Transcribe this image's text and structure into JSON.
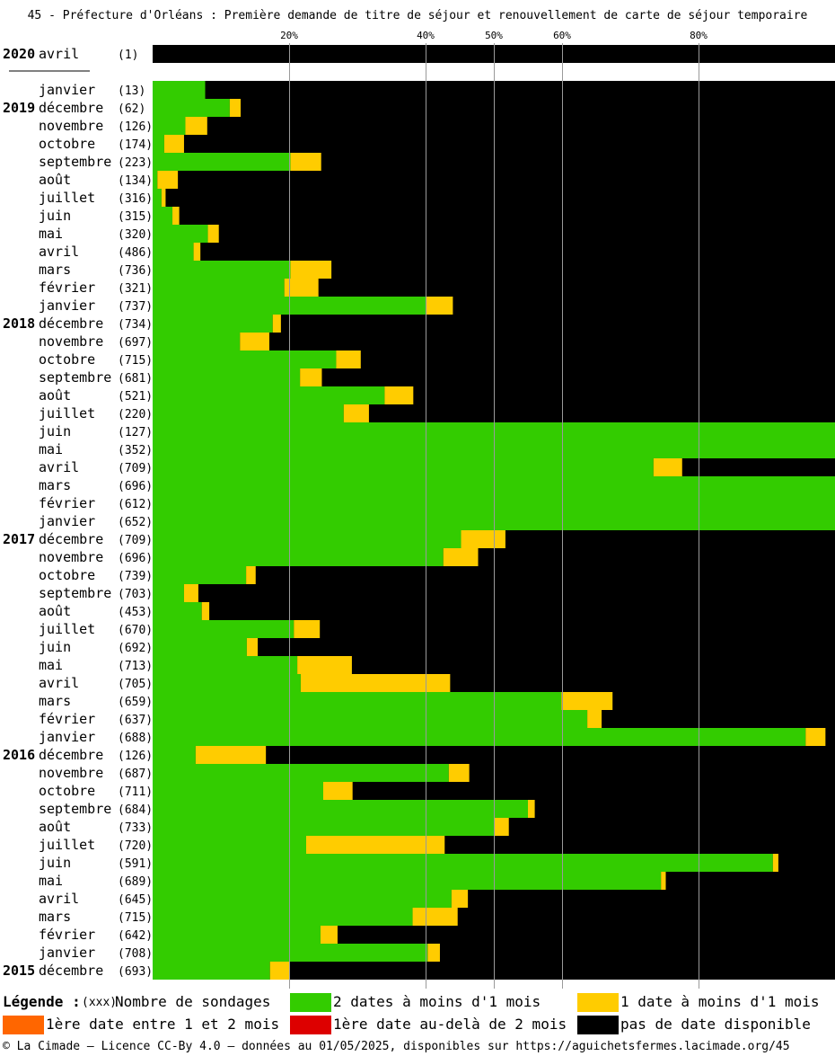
{
  "title": "45 - Préfecture d'Orléans : Première demande de titre de séjour et renouvellement de carte de séjour temporaire",
  "colors": {
    "green": "#33cc00",
    "yellow": "#ffcc00",
    "orange": "#ff6600",
    "red": "#dd0000",
    "black": "#000000"
  },
  "chart_data": {
    "type": "bar",
    "orientation": "horizontal",
    "stacked": true,
    "xlim": [
      0,
      100
    ],
    "x_ticks": [
      "20%",
      "40%",
      "50%",
      "60%",
      "80%"
    ],
    "x_tick_values": [
      20,
      40,
      50,
      60,
      80
    ],
    "grid": "vertical lines at tick values",
    "legend_position": "bottom",
    "series": [
      {
        "name": "2 dates à moins d'1 mois",
        "color": "#33cc00"
      },
      {
        "name": "1 date à moins d'1 mois",
        "color": "#ffcc00"
      },
      {
        "name": "1ère date entre 1 et 2 mois",
        "color": "#ff6600"
      },
      {
        "name": "1ère date au-delà de 2 mois",
        "color": "#dd0000"
      },
      {
        "name": "pas de date disponible",
        "color": "#000000"
      }
    ],
    "rows": [
      {
        "year": "2020",
        "month": "avril",
        "count": "(1)",
        "green": 0,
        "yellow": 0
      },
      {
        "year": "",
        "month": "janvier",
        "count": "(13)",
        "green": 7.7,
        "yellow": 0
      },
      {
        "year": "2019",
        "month": "décembre",
        "count": "(62)",
        "green": 11.3,
        "yellow": 1.6
      },
      {
        "year": "",
        "month": "novembre",
        "count": "(126)",
        "green": 4.8,
        "yellow": 3.2
      },
      {
        "year": "",
        "month": "octobre",
        "count": "(174)",
        "green": 1.7,
        "yellow": 2.9
      },
      {
        "year": "",
        "month": "septembre",
        "count": "(223)",
        "green": 20.2,
        "yellow": 4.5
      },
      {
        "year": "",
        "month": "août",
        "count": "(134)",
        "green": 0.7,
        "yellow": 3.0
      },
      {
        "year": "",
        "month": "juillet",
        "count": "(316)",
        "green": 1.3,
        "yellow": 0.6
      },
      {
        "year": "",
        "month": "juin",
        "count": "(315)",
        "green": 2.9,
        "yellow": 1.0
      },
      {
        "year": "",
        "month": "mai",
        "count": "(320)",
        "green": 8.1,
        "yellow": 1.6
      },
      {
        "year": "",
        "month": "avril",
        "count": "(486)",
        "green": 6.0,
        "yellow": 1.0
      },
      {
        "year": "",
        "month": "mars",
        "count": "(736)",
        "green": 20.2,
        "yellow": 6.0
      },
      {
        "year": "",
        "month": "février",
        "count": "(321)",
        "green": 19.3,
        "yellow": 5.0
      },
      {
        "year": "",
        "month": "janvier",
        "count": "(737)",
        "green": 40.0,
        "yellow": 4.0
      },
      {
        "year": "2018",
        "month": "décembre",
        "count": "(734)",
        "green": 17.6,
        "yellow": 1.2
      },
      {
        "year": "",
        "month": "novembre",
        "count": "(697)",
        "green": 12.8,
        "yellow": 4.3
      },
      {
        "year": "",
        "month": "octobre",
        "count": "(715)",
        "green": 26.9,
        "yellow": 3.6
      },
      {
        "year": "",
        "month": "septembre",
        "count": "(681)",
        "green": 21.6,
        "yellow": 3.2
      },
      {
        "year": "",
        "month": "août",
        "count": "(521)",
        "green": 34.0,
        "yellow": 4.2
      },
      {
        "year": "",
        "month": "juillet",
        "count": "(220)",
        "green": 28.0,
        "yellow": 3.7
      },
      {
        "year": "",
        "month": "juin",
        "count": "(127)",
        "green": 100,
        "yellow": 0
      },
      {
        "year": "",
        "month": "mai",
        "count": "(352)",
        "green": 100,
        "yellow": 0
      },
      {
        "year": "",
        "month": "avril",
        "count": "(709)",
        "green": 73.4,
        "yellow": 4.2
      },
      {
        "year": "",
        "month": "mars",
        "count": "(696)",
        "green": 100,
        "yellow": 0
      },
      {
        "year": "",
        "month": "février",
        "count": "(612)",
        "green": 100,
        "yellow": 0
      },
      {
        "year": "",
        "month": "janvier",
        "count": "(652)",
        "green": 100,
        "yellow": 0
      },
      {
        "year": "2017",
        "month": "décembre",
        "count": "(709)",
        "green": 45.2,
        "yellow": 6.5
      },
      {
        "year": "",
        "month": "novembre",
        "count": "(696)",
        "green": 42.6,
        "yellow": 5.1
      },
      {
        "year": "",
        "month": "octobre",
        "count": "(739)",
        "green": 13.7,
        "yellow": 1.4
      },
      {
        "year": "",
        "month": "septembre",
        "count": "(703)",
        "green": 4.6,
        "yellow": 2.1
      },
      {
        "year": "",
        "month": "août",
        "count": "(453)",
        "green": 7.2,
        "yellow": 1.1
      },
      {
        "year": "",
        "month": "juillet",
        "count": "(670)",
        "green": 20.7,
        "yellow": 3.8
      },
      {
        "year": "",
        "month": "juin",
        "count": "(692)",
        "green": 13.8,
        "yellow": 1.6
      },
      {
        "year": "",
        "month": "mai",
        "count": "(713)",
        "green": 21.2,
        "yellow": 8.0
      },
      {
        "year": "",
        "month": "avril",
        "count": "(705)",
        "green": 21.7,
        "yellow": 21.9
      },
      {
        "year": "",
        "month": "mars",
        "count": "(659)",
        "green": 59.9,
        "yellow": 7.5
      },
      {
        "year": "",
        "month": "février",
        "count": "(637)",
        "green": 63.7,
        "yellow": 2.1
      },
      {
        "year": "",
        "month": "janvier",
        "count": "(688)",
        "green": 95.7,
        "yellow": 2.9
      },
      {
        "year": "2016",
        "month": "décembre",
        "count": "(126)",
        "green": 6.3,
        "yellow": 10.3
      },
      {
        "year": "",
        "month": "novembre",
        "count": "(687)",
        "green": 43.4,
        "yellow": 3.0
      },
      {
        "year": "",
        "month": "octobre",
        "count": "(711)",
        "green": 25.0,
        "yellow": 4.3
      },
      {
        "year": "",
        "month": "septembre",
        "count": "(684)",
        "green": 55.0,
        "yellow": 1.0
      },
      {
        "year": "",
        "month": "août",
        "count": "(733)",
        "green": 50.1,
        "yellow": 2.1
      },
      {
        "year": "",
        "month": "juillet",
        "count": "(720)",
        "green": 22.5,
        "yellow": 20.3
      },
      {
        "year": "",
        "month": "juin",
        "count": "(591)",
        "green": 90.9,
        "yellow": 0.8
      },
      {
        "year": "",
        "month": "mai",
        "count": "(689)",
        "green": 74.5,
        "yellow": 0.7
      },
      {
        "year": "",
        "month": "avril",
        "count": "(645)",
        "green": 43.8,
        "yellow": 2.4
      },
      {
        "year": "",
        "month": "mars",
        "count": "(715)",
        "green": 38.1,
        "yellow": 6.6
      },
      {
        "year": "",
        "month": "février",
        "count": "(642)",
        "green": 24.6,
        "yellow": 2.5
      },
      {
        "year": "",
        "month": "janvier",
        "count": "(708)",
        "green": 40.3,
        "yellow": 1.8
      },
      {
        "year": "2015",
        "month": "décembre",
        "count": "(693)",
        "green": 17.2,
        "yellow": 2.8
      }
    ]
  },
  "legend": {
    "title": "Légende :",
    "xxx": "(xxx)",
    "count_label": "Nombre de sondages",
    "green_label": "2 dates à moins d'1 mois",
    "yellow_label": "1 date à moins d'1 mois",
    "orange_label": "1ère date entre 1 et 2 mois",
    "red_label": "1ère date au-delà de 2 mois",
    "black_label": "pas de date disponible"
  },
  "footer": "© La Cimade – Licence CC-By 4.0 – données au 01/05/2025, disponibles sur https://aguichetsfermes.lacimade.org/45"
}
